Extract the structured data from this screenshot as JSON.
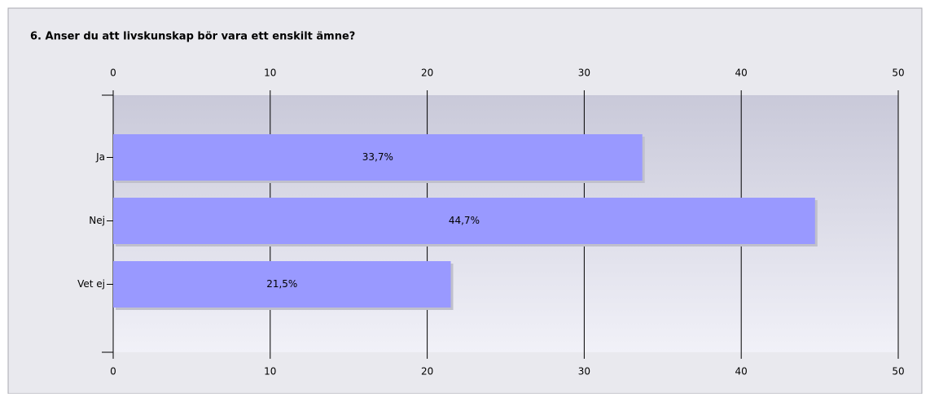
{
  "chart_data": {
    "type": "bar",
    "orientation": "horizontal",
    "title": "6. Anser du att livskunskap bör vara ett enskilt ämne?",
    "categories": [
      "Ja",
      "Nej",
      "Vet ej"
    ],
    "values": [
      33.7,
      44.7,
      21.5
    ],
    "value_labels": [
      "33,7%",
      "44,7%",
      "21,5%"
    ],
    "color": "#9999ff",
    "xlim": [
      0,
      50
    ],
    "xticks": [
      0,
      10,
      20,
      30,
      40,
      50
    ],
    "grid": true
  }
}
